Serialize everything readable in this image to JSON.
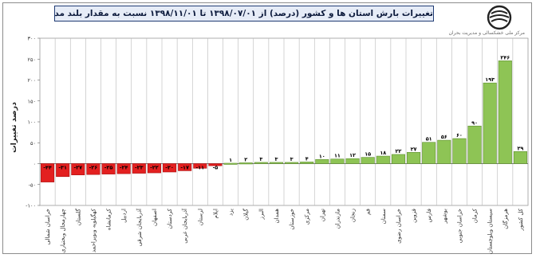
{
  "title": "تغییرات بارش استان ها و کشور (درصد) از ۱۳۹۸/۰۷/۰۱ تا ۱۳۹۸/۱۱/۰۱ نسبت به مقدار بلند مدت",
  "organization": "مرکز ملی خشکسالی و مدیریت بحران",
  "colors": {
    "negative": "#e32020",
    "positive": "#8ec455",
    "country": "#8ec455"
  },
  "chart_data": {
    "type": "bar",
    "title": "تغییرات بارش استان ها و کشور (درصد) از ۱۳۹۸/۰۷/۰۱ تا ۱۳۹۸/۱۱/۰۱ نسبت به مقدار بلند مدت",
    "ylabel": "درصد تغییرات",
    "xlabel": "",
    "ylim": [
      -100,
      300
    ],
    "yticks": [
      "-۱۰۰",
      "-۵۰",
      "۰",
      "۵۰",
      "۱۰۰",
      "۱۵۰",
      "۲۰۰",
      "۲۵۰",
      "۳۰۰"
    ],
    "grid": "vertical",
    "categories": [
      "خراسان شمالی",
      "چهارمحال وبختیاری",
      "گلستان",
      "کهگیلویه وبویراحمد",
      "کرمانشاه",
      "اردبیل",
      "آذربایجان شرقی",
      "اصفهان",
      "کردستان",
      "آذربایجان غربی",
      "لرستان",
      "ایلام",
      "یزد",
      "گیلان",
      "البرز",
      "همدان",
      "خوزستان",
      "مرکزی",
      "تهران",
      "مازندران",
      "زنجان",
      "قم",
      "سمنان",
      "خراسان رضوی",
      "قزوین",
      "فارس",
      "بوشهر",
      "خراسان جنوبی",
      "کرمان",
      "سیستان وبلوچستان",
      "هرمزگان",
      "کل کشور"
    ],
    "values": [
      -44,
      -31,
      -27,
      -26,
      -25,
      -24,
      -23,
      -22,
      -20,
      -17,
      -11,
      -5,
      1,
      2,
      3,
      3,
      3,
      4,
      10,
      11,
      12,
      15,
      18,
      22,
      27,
      51,
      56,
      60,
      90,
      193,
      246,
      29
    ],
    "labels": [
      "-۴۴",
      "-۳۱",
      "-۲۷",
      "-۲۶",
      "-۲۵",
      "-۲۴",
      "-۲۳",
      "-۲۲",
      "-۲۰",
      "-۱۷",
      "-۱۱",
      "-۵",
      "۱",
      "۲",
      "۳",
      "۳",
      "۳",
      "۴",
      "۱۰",
      "۱۱",
      "۱۲",
      "۱۵",
      "۱۸",
      "۲۲",
      "۲۷",
      "۵۱",
      "۵۶",
      "۶۰",
      "۹۰",
      "۱۹۳",
      "۲۴۶",
      "۲۹"
    ]
  }
}
